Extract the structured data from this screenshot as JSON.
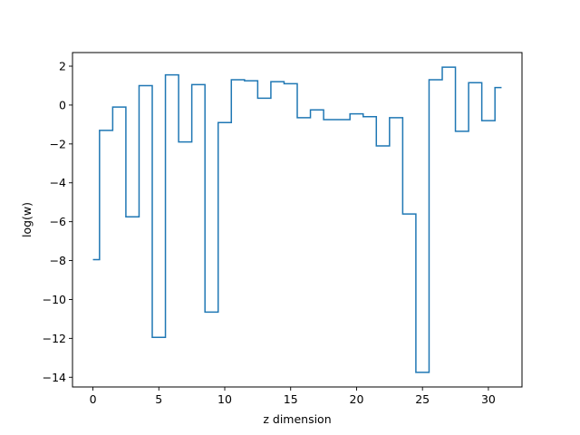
{
  "chart_data": {
    "type": "line",
    "drawstyle": "steps-mid",
    "xlabel": "z dimension",
    "ylabel": "log(w)",
    "xlim": [
      -1.55,
      32.55
    ],
    "ylim": [
      -14.5,
      2.7
    ],
    "xticks": [
      0,
      5,
      10,
      15,
      20,
      25,
      30
    ],
    "yticks": [
      -14,
      -12,
      -10,
      -8,
      -6,
      -4,
      -2,
      0,
      2
    ],
    "grid": false,
    "color": "#1f77b4",
    "x": [
      0,
      1,
      2,
      3,
      4,
      5,
      6,
      7,
      8,
      9,
      10,
      11,
      12,
      13,
      14,
      15,
      16,
      17,
      18,
      19,
      20,
      21,
      22,
      23,
      24,
      25,
      26,
      27,
      28,
      29,
      30,
      31
    ],
    "y": [
      -7.95,
      -1.3,
      -0.1,
      -5.75,
      1.0,
      -11.95,
      1.55,
      -1.9,
      1.05,
      -10.65,
      -0.9,
      1.3,
      1.25,
      0.35,
      1.2,
      1.1,
      -0.65,
      -0.25,
      -0.75,
      -0.75,
      -0.45,
      -0.6,
      -2.1,
      -0.65,
      -5.6,
      -13.75,
      1.3,
      1.95,
      -1.35,
      1.15,
      -0.8,
      0.9
    ]
  }
}
